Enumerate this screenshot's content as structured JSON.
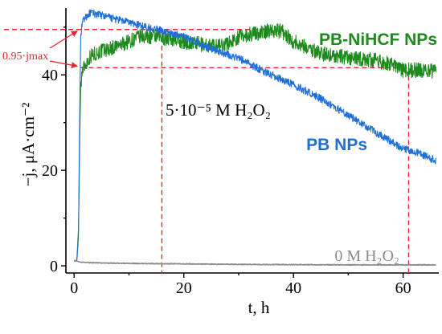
{
  "chart_data": {
    "type": "line",
    "xlabel": "t, h",
    "ylabel": "−j, μA·cm⁻²",
    "xlim": [
      -1.5,
      66.5
    ],
    "ylim": [
      -1.5,
      54
    ],
    "x_ticks": [
      0,
      20,
      40,
      60
    ],
    "y_ticks": [
      0,
      20,
      40
    ],
    "grid": false,
    "series": [
      {
        "name": "PB-NiHCF NPs",
        "color": "#1e8a1e",
        "x": [
          0,
          0.5,
          0.8,
          1.0,
          1.2,
          1.5,
          2,
          3,
          5,
          8,
          10,
          12,
          15,
          18,
          20,
          25,
          28,
          30,
          32,
          35,
          36,
          38,
          40,
          42,
          45,
          50,
          55,
          58,
          60,
          62,
          64,
          66
        ],
        "y": [
          1,
          1.2,
          8,
          25,
          38,
          41,
          42,
          44,
          45,
          46,
          47,
          48,
          48,
          47.5,
          47,
          46,
          46.5,
          48,
          48.5,
          49,
          49.5,
          49,
          47,
          46,
          44.5,
          43.5,
          43,
          42,
          41,
          41,
          41,
          40.5
        ]
      },
      {
        "name": "PB NPs",
        "color": "#1f6fd6",
        "x": [
          0,
          0.5,
          0.8,
          1.0,
          1.2,
          1.5,
          2,
          3,
          5,
          8,
          10,
          15,
          20,
          25,
          30,
          35,
          40,
          45,
          50,
          55,
          60,
          62,
          64,
          66
        ],
        "y": [
          1,
          1,
          6,
          30,
          48,
          51,
          52,
          53,
          52.5,
          51.5,
          51,
          49.5,
          48,
          45.5,
          43.5,
          40.5,
          38,
          35,
          31.5,
          28,
          24.5,
          24,
          23,
          22
        ]
      },
      {
        "name": "0 M H₂O₂",
        "color": "#8c8c8c",
        "x": [
          0,
          0.5,
          1,
          2,
          5,
          10,
          20,
          30,
          40,
          50,
          60,
          66
        ],
        "y": [
          1.2,
          1.0,
          0.8,
          0.7,
          0.6,
          0.5,
          0.4,
          0.3,
          0.25,
          0.2,
          0.2,
          0.2
        ]
      }
    ],
    "reference_lines": {
      "horizontal": [
        49.5,
        41.5
      ],
      "vertical": [
        16,
        61
      ],
      "color": "#e8262c"
    },
    "annotations": {
      "pb_nihcf": "PB-NiHCF NPs",
      "pb": "PB NPs",
      "zero_h2o2": "0 M H₂O₂",
      "h2o2_conc": "5·10⁻⁵ M H₂O₂",
      "j_max": "0.95·jmax"
    }
  }
}
